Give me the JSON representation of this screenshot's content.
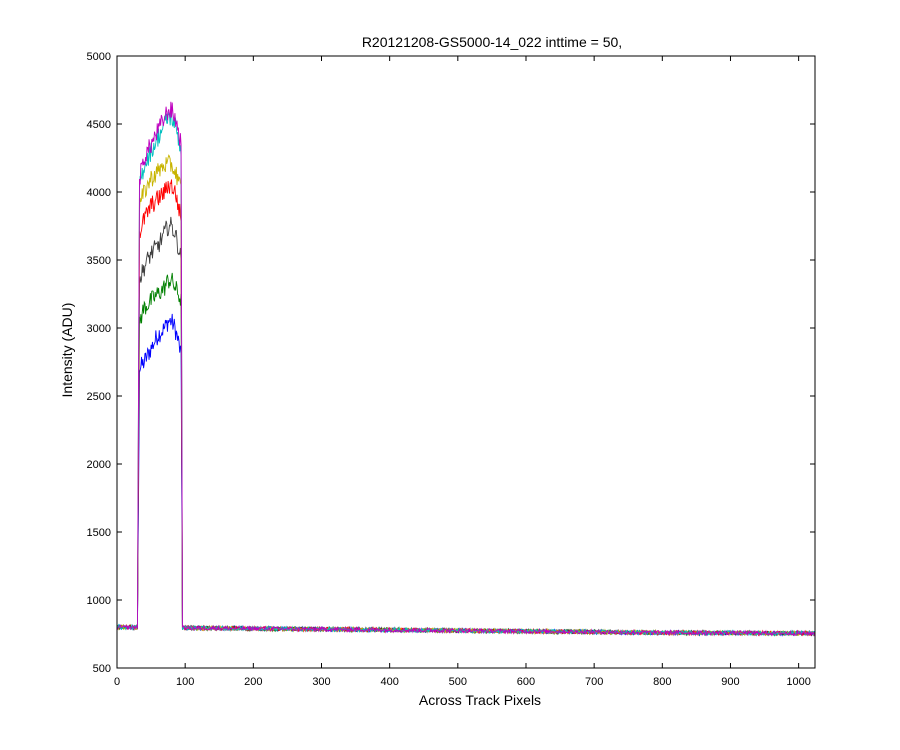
{
  "chart_data": {
    "type": "line",
    "title": "R20121208-GS5000-14_022 inttime = 50,",
    "xlabel": "Across Track Pixels",
    "ylabel": "Intensity (ADU)",
    "xlim": [
      0,
      1024
    ],
    "ylim": [
      500,
      5000
    ],
    "xticks": [
      0,
      100,
      200,
      300,
      400,
      500,
      600,
      700,
      800,
      900,
      1000
    ],
    "yticks": [
      500,
      1000,
      1500,
      2000,
      2500,
      3000,
      3500,
      4000,
      4500,
      5000
    ],
    "grid": false,
    "legend": "none",
    "baseline": {
      "x": [
        0,
        100,
        200,
        300,
        400,
        500,
        600,
        700,
        800,
        900,
        1024
      ],
      "y": [
        800,
        795,
        790,
        785,
        780,
        775,
        770,
        765,
        760,
        758,
        755
      ]
    },
    "peak_region": {
      "x_start": 32,
      "x_end": 95
    },
    "series": [
      {
        "color": "#0000ff",
        "x": [
          30,
          33,
          40,
          50,
          60,
          70,
          75,
          80,
          85,
          90,
          94,
          96
        ],
        "y": [
          810,
          2700,
          2750,
          2850,
          2950,
          3000,
          3050,
          3050,
          3000,
          2900,
          2800,
          800
        ]
      },
      {
        "color": "#008000",
        "x": [
          30,
          33,
          40,
          50,
          60,
          70,
          75,
          80,
          85,
          90,
          94,
          96
        ],
        "y": [
          810,
          3050,
          3150,
          3200,
          3250,
          3300,
          3350,
          3350,
          3300,
          3250,
          3200,
          800
        ]
      },
      {
        "color": "#3f3f3f",
        "x": [
          30,
          33,
          40,
          50,
          60,
          70,
          75,
          80,
          85,
          90,
          94,
          96
        ],
        "y": [
          810,
          3350,
          3450,
          3550,
          3600,
          3700,
          3750,
          3750,
          3700,
          3600,
          3500,
          800
        ]
      },
      {
        "color": "#ff0000",
        "x": [
          30,
          33,
          40,
          50,
          60,
          70,
          75,
          80,
          85,
          90,
          94,
          96
        ],
        "y": [
          810,
          3700,
          3800,
          3900,
          3950,
          4000,
          4050,
          4050,
          4000,
          3900,
          3800,
          800
        ]
      },
      {
        "color": "#c8b400",
        "x": [
          30,
          33,
          40,
          50,
          60,
          70,
          75,
          80,
          85,
          90,
          94,
          96
        ],
        "y": [
          810,
          3900,
          4000,
          4100,
          4150,
          4200,
          4200,
          4200,
          4150,
          4100,
          4000,
          800
        ]
      },
      {
        "color": "#00bfbf",
        "x": [
          30,
          33,
          40,
          50,
          60,
          70,
          75,
          80,
          85,
          90,
          94,
          96
        ],
        "y": [
          810,
          4050,
          4200,
          4300,
          4400,
          4500,
          4550,
          4550,
          4500,
          4400,
          4300,
          800
        ]
      },
      {
        "color": "#bf00bf",
        "x": [
          30,
          33,
          40,
          50,
          60,
          70,
          75,
          80,
          85,
          90,
          94,
          96
        ],
        "y": [
          810,
          4100,
          4250,
          4350,
          4450,
          4550,
          4600,
          4600,
          4550,
          4450,
          4350,
          800
        ]
      }
    ]
  }
}
